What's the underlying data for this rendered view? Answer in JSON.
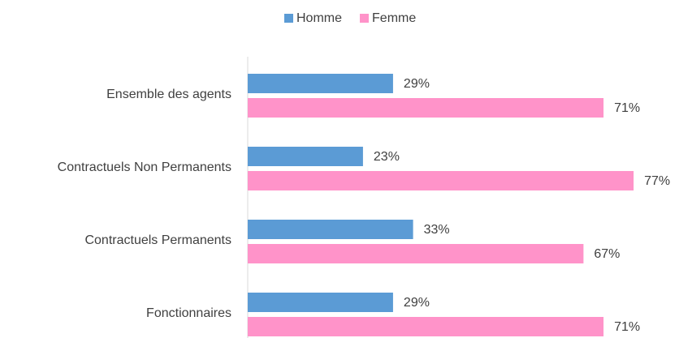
{
  "chart_data": {
    "type": "bar",
    "orientation": "horizontal",
    "categories": [
      "Ensemble des agents",
      "Contractuels Non Permanents",
      "Contractuels Permanents",
      "Fonctionnaires"
    ],
    "series": [
      {
        "name": "Homme",
        "color": "#5b9bd5",
        "values": [
          29,
          23,
          33,
          29
        ],
        "value_labels": [
          "29%",
          "23%",
          "33%",
          "29%"
        ]
      },
      {
        "name": "Femme",
        "color": "#ff93c9",
        "values": [
          71,
          77,
          67,
          71
        ],
        "value_labels": [
          "71%",
          "77%",
          "67%",
          "71%"
        ]
      }
    ],
    "legend": "top"
  }
}
